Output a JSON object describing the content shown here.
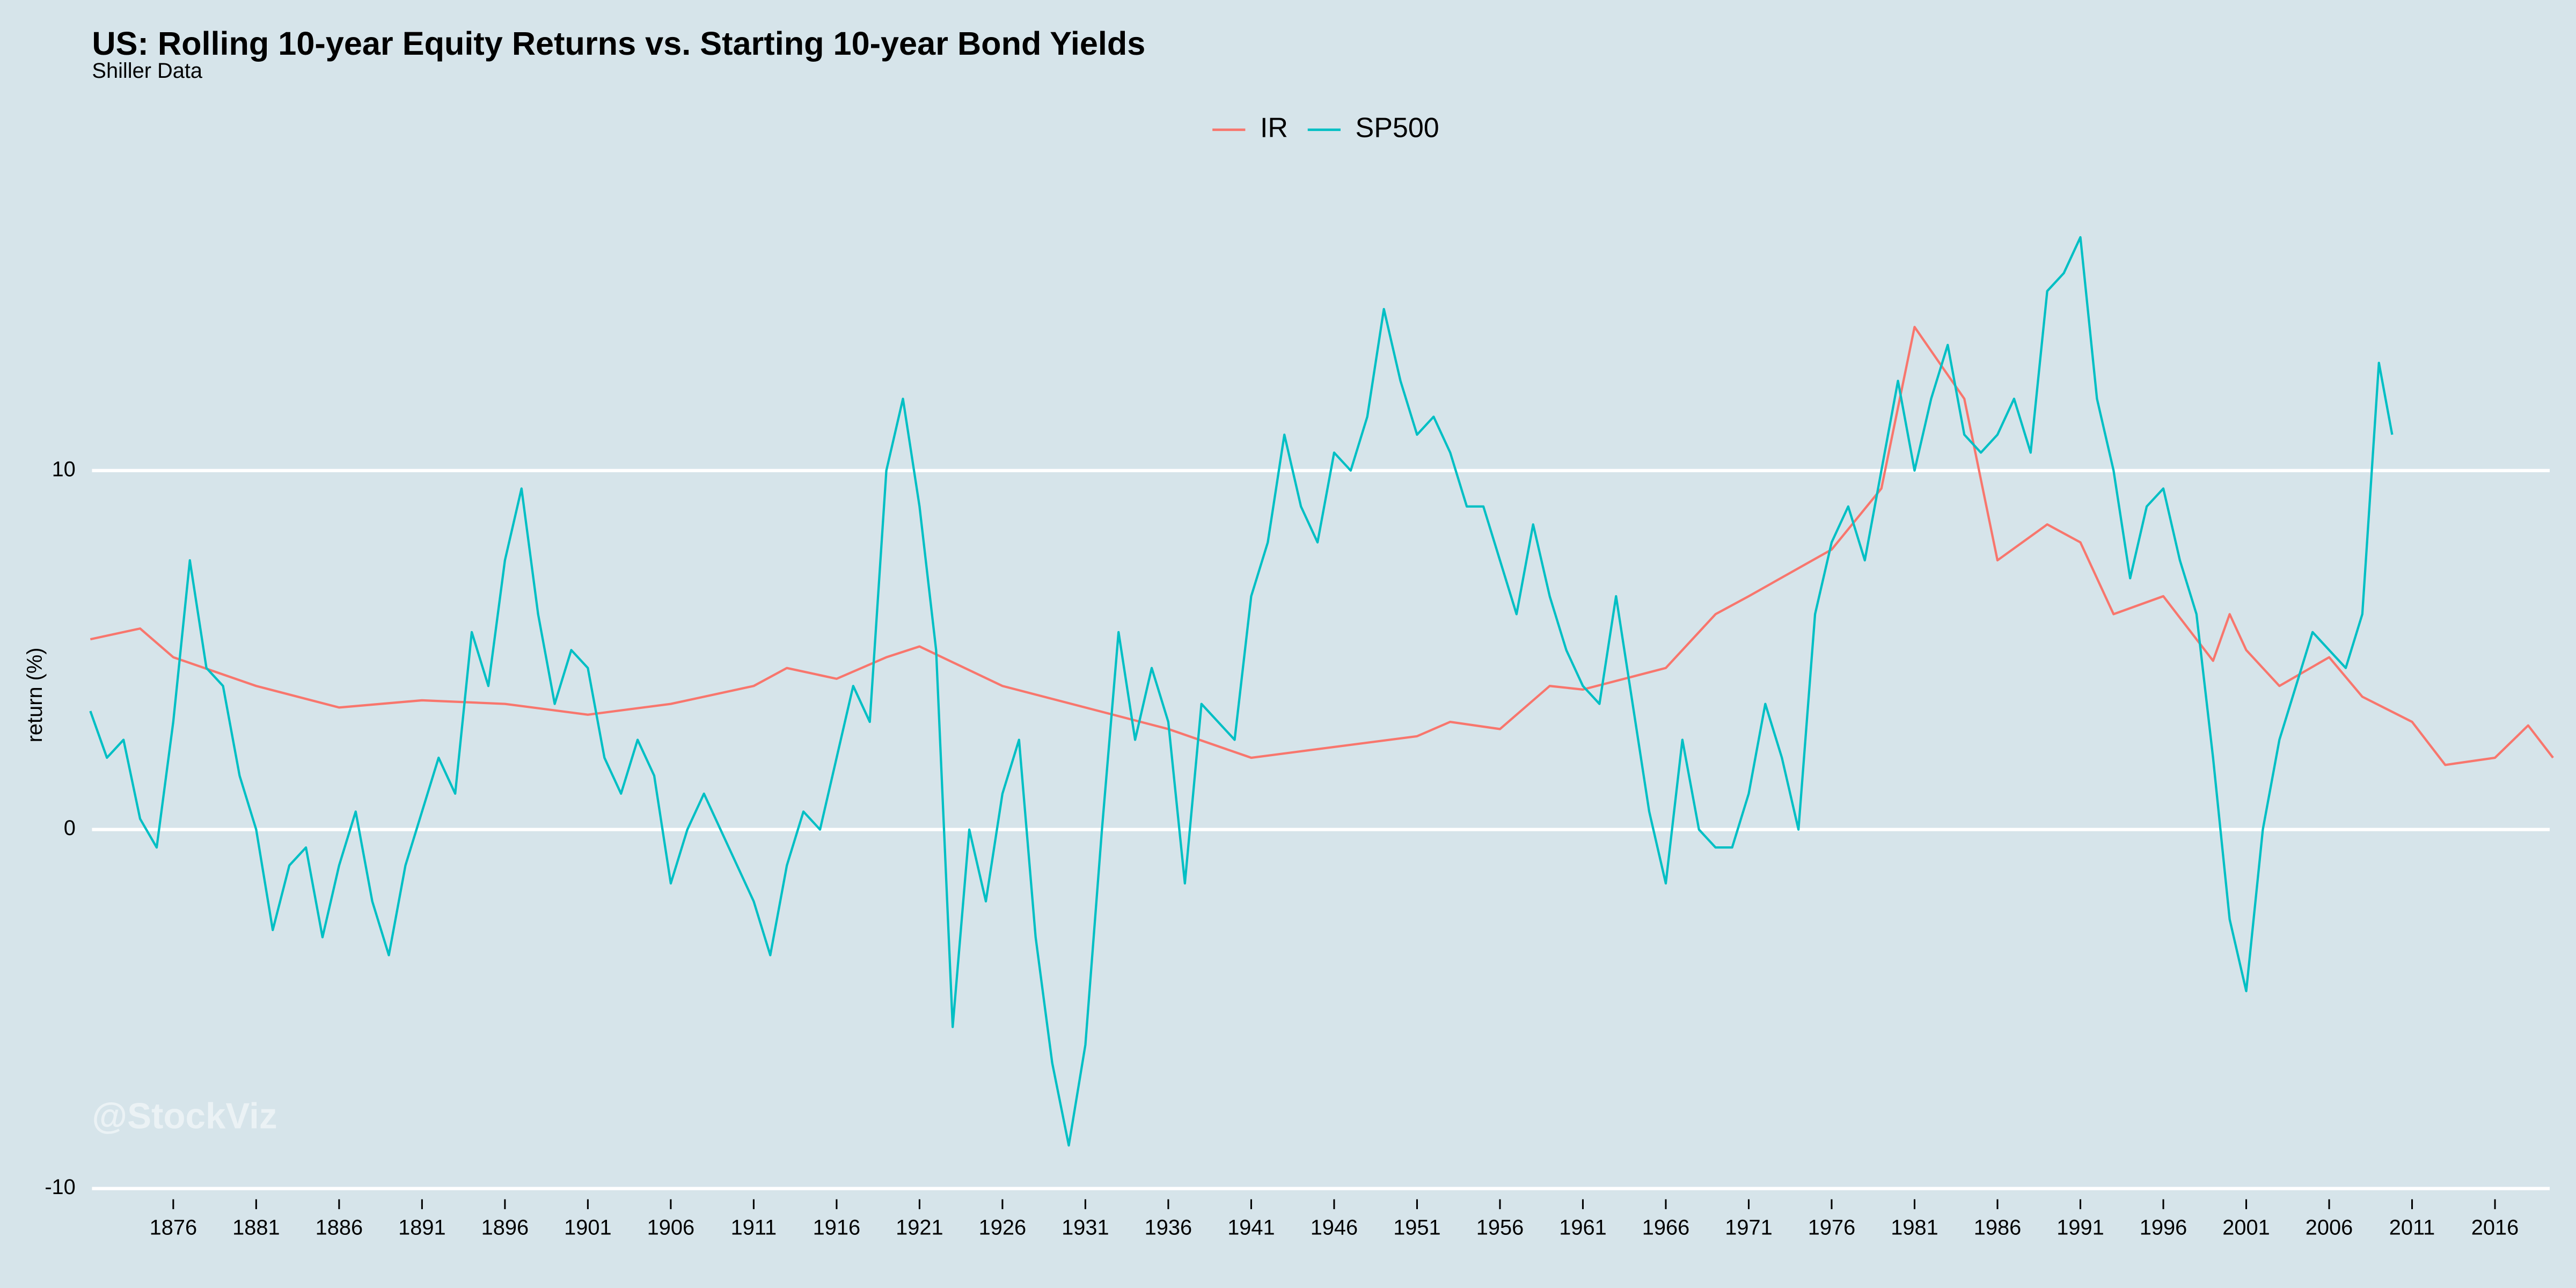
{
  "chart_data": {
    "type": "line",
    "title": "US: Rolling 10-year Equity Returns vs. Starting 10-year Bond Yields",
    "subtitle": "Shiller Data",
    "y_label": "return (%)",
    "watermark": "@StockViz",
    "legend_position": "top",
    "grid": true,
    "background": "#d6e4ea",
    "xlim": [
      1871.1,
      2019.3
    ],
    "ylim": [
      -10.3,
      17.8
    ],
    "xticks": [
      1876,
      1881,
      1886,
      1891,
      1896,
      1901,
      1906,
      1911,
      1916,
      1921,
      1926,
      1931,
      1936,
      1941,
      1946,
      1951,
      1956,
      1961,
      1966,
      1971,
      1976,
      1981,
      1986,
      1991,
      1996,
      2001,
      2006,
      2011,
      2016
    ],
    "yticks": [
      -10,
      0,
      10
    ],
    "series": [
      {
        "name": "IR",
        "color": "#f8766d",
        "x": [
          1871,
          1874,
          1876,
          1881,
          1886,
          1891,
          1896,
          1901,
          1906,
          1911,
          1913,
          1916,
          1919,
          1921,
          1926,
          1931,
          1936,
          1941,
          1946,
          1951,
          1953,
          1956,
          1959,
          1961,
          1966,
          1969,
          1971,
          1976,
          1979,
          1981,
          1984,
          1986,
          1989,
          1991,
          1993,
          1996,
          1999,
          2000,
          2001,
          2003,
          2006,
          2008,
          2011,
          2013,
          2016,
          2018,
          2019.5
        ],
        "values": [
          5.3,
          5.6,
          4.8,
          4.0,
          3.4,
          3.6,
          3.5,
          3.2,
          3.5,
          4.0,
          4.5,
          4.2,
          4.8,
          5.1,
          4.0,
          3.4,
          2.8,
          2.0,
          2.3,
          2.6,
          3.0,
          2.8,
          4.0,
          3.9,
          4.5,
          6.0,
          6.5,
          7.8,
          9.5,
          14.0,
          12.0,
          7.5,
          8.5,
          8.0,
          6.0,
          6.5,
          4.7,
          6.0,
          5.0,
          4.0,
          4.8,
          3.7,
          3.0,
          1.8,
          2.0,
          2.9,
          2.0
        ]
      },
      {
        "name": "SP500",
        "color": "#00bfc4",
        "x": [
          1871,
          1872,
          1873,
          1874,
          1875,
          1876,
          1877,
          1878,
          1879,
          1880,
          1881,
          1882,
          1883,
          1884,
          1885,
          1886,
          1887,
          1888,
          1889,
          1890,
          1891,
          1892,
          1893,
          1894,
          1895,
          1896,
          1897,
          1898,
          1899,
          1900,
          1901,
          1902,
          1903,
          1904,
          1905,
          1906,
          1907,
          1908,
          1909,
          1910,
          1911,
          1912,
          1913,
          1914,
          1915,
          1916,
          1917,
          1918,
          1919,
          1920,
          1921,
          1922,
          1923,
          1924,
          1925,
          1926,
          1927,
          1928,
          1929,
          1930,
          1931,
          1932,
          1933,
          1934,
          1935,
          1936,
          1937,
          1938,
          1939,
          1940,
          1941,
          1942,
          1943,
          1944,
          1945,
          1946,
          1947,
          1948,
          1949,
          1950,
          1951,
          1952,
          1953,
          1954,
          1955,
          1956,
          1957,
          1958,
          1959,
          1960,
          1961,
          1962,
          1963,
          1964,
          1965,
          1966,
          1967,
          1968,
          1969,
          1970,
          1971,
          1972,
          1973,
          1974,
          1975,
          1976,
          1977,
          1978,
          1979,
          1980,
          1981,
          1982,
          1983,
          1984,
          1985,
          1986,
          1987,
          1988,
          1989,
          1990,
          1991,
          1992,
          1993,
          1994,
          1995,
          1996,
          1997,
          1998,
          1999,
          2000,
          2001,
          2002,
          2003,
          2004,
          2005,
          2006,
          2007,
          2008,
          2009,
          2009.8
        ],
        "values": [
          3.3,
          2.0,
          2.5,
          0.3,
          -0.5,
          3.0,
          7.5,
          4.5,
          4.0,
          1.5,
          0.0,
          -2.8,
          -1.0,
          -0.5,
          -3.0,
          -1.0,
          0.5,
          -2.0,
          -3.5,
          -1.0,
          0.5,
          2.0,
          1.0,
          5.5,
          4.0,
          7.5,
          9.5,
          6.0,
          3.5,
          5.0,
          4.5,
          2.0,
          1.0,
          2.5,
          1.5,
          -1.5,
          0.0,
          1.0,
          0.0,
          -1.0,
          -2.0,
          -3.5,
          -1.0,
          0.5,
          0.0,
          2.0,
          4.0,
          3.0,
          10.0,
          12.0,
          9.0,
          5.0,
          -5.5,
          0.0,
          -2.0,
          1.0,
          2.5,
          -3.0,
          -6.5,
          -8.8,
          -6.0,
          0.0,
          5.5,
          2.5,
          4.5,
          3.0,
          -1.5,
          3.5,
          3.0,
          2.5,
          6.5,
          8.0,
          11.0,
          9.0,
          8.0,
          10.5,
          10.0,
          11.5,
          14.5,
          12.5,
          11.0,
          11.5,
          10.5,
          9.0,
          9.0,
          7.5,
          6.0,
          8.5,
          6.5,
          5.0,
          4.0,
          3.5,
          6.5,
          3.5,
          0.5,
          -1.5,
          2.5,
          0.0,
          -0.5,
          -0.5,
          1.0,
          3.5,
          2.0,
          0.0,
          6.0,
          8.0,
          9.0,
          7.5,
          10.0,
          12.5,
          10.0,
          12.0,
          13.5,
          11.0,
          10.5,
          11.0,
          12.0,
          10.5,
          15.0,
          15.5,
          16.5,
          12.0,
          10.0,
          7.0,
          9.0,
          9.5,
          7.5,
          6.0,
          2.0,
          -2.5,
          -4.5,
          0.0,
          2.5,
          4.0,
          5.5,
          5.0,
          4.5,
          6.0,
          13.0,
          11.0
        ]
      }
    ]
  }
}
